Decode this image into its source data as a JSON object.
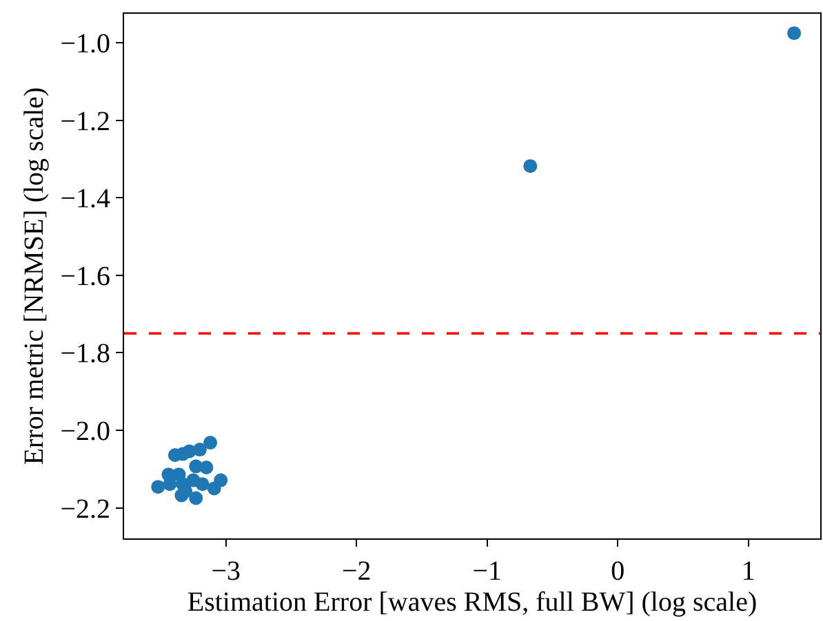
{
  "chart_data": {
    "type": "scatter",
    "xlabel": "Estimation Error [waves RMS, full BW] (log scale)",
    "ylabel": "Error metric [NRMSE] (log scale)",
    "x": [
      1.35,
      -0.67,
      -3.12,
      -3.2,
      -3.28,
      -3.39,
      -3.33,
      -3.26,
      -3.23,
      -3.15,
      -3.36,
      -3.44,
      -3.52,
      -3.43,
      -3.33,
      -3.25,
      -3.18,
      -3.04,
      -3.09,
      -3.34,
      -3.23,
      -3.31
    ],
    "values": [
      -0.975,
      -1.318,
      -2.032,
      -2.05,
      -2.054,
      -2.064,
      -2.061,
      null,
      -2.093,
      -2.096,
      -2.114,
      -2.114,
      -2.146,
      -2.139,
      -2.139,
      -2.129,
      -2.139,
      -2.129,
      -2.15,
      -2.168,
      -2.175,
      -2.157
    ],
    "color": "#1f77b4",
    "marker": "circle",
    "xlim": [
      -3.78,
      1.55
    ],
    "xticks": [
      {
        "value": -3,
        "label": "−3"
      },
      {
        "value": -2,
        "label": "−2"
      },
      {
        "value": -1,
        "label": "−1"
      },
      0,
      1
    ],
    "ylim": [
      -2.279,
      -0.925
    ],
    "yticks": [
      {
        "value": -2.2,
        "label": "−2.2"
      },
      {
        "value": -2.0,
        "label": "−2.0"
      },
      {
        "value": -1.8,
        "label": "−1.8"
      },
      {
        "value": -1.6,
        "label": "−1.6"
      },
      {
        "value": -1.4,
        "label": "−1.4"
      },
      {
        "value": -1.2,
        "label": "−1.2"
      },
      {
        "value": -1.0,
        "label": "−1.0"
      }
    ],
    "ref_lines": [
      {
        "axis": "y",
        "value": -1.75,
        "label": null,
        "color": "#ff0000",
        "line_style": "dashed"
      }
    ],
    "grid": false,
    "legend": false
  }
}
